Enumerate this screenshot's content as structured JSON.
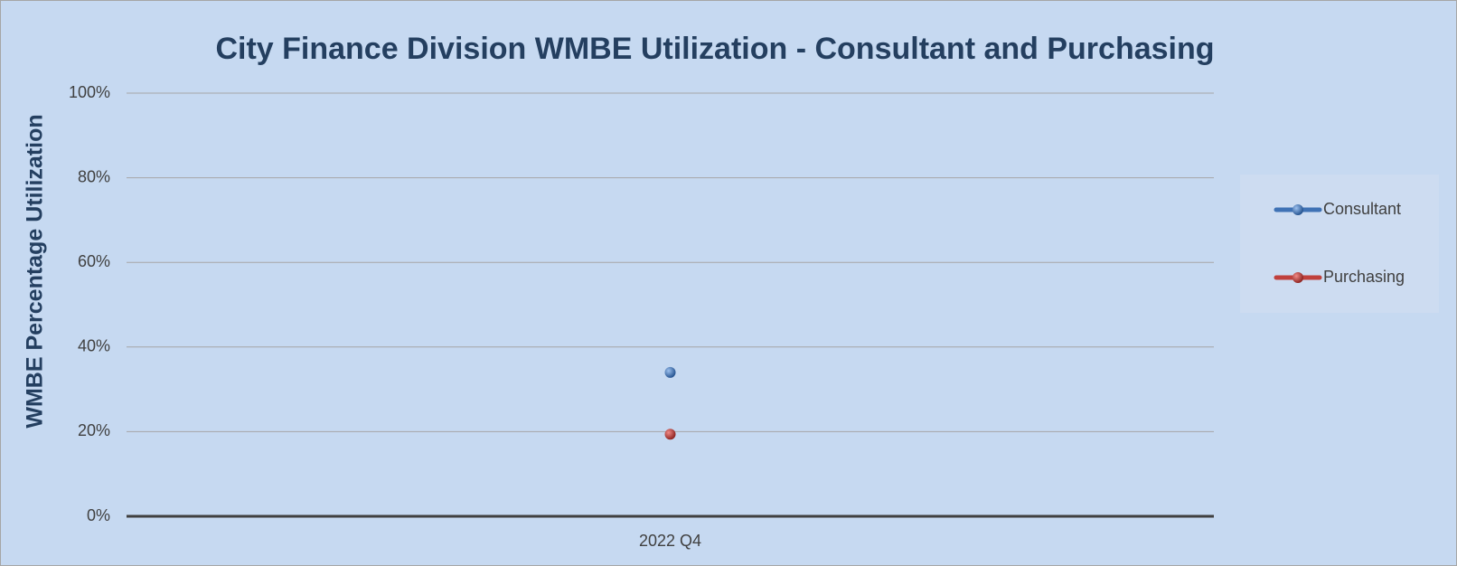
{
  "chart_data": {
    "type": "line",
    "title": "City Finance Division WMBE Utilization - Consultant and Purchasing",
    "y_label": "WMBE Percentage Utilization",
    "categories": [
      "2022 Q4"
    ],
    "series": [
      {
        "name": "Consultant",
        "color": "#3f72b5",
        "values": [
          34
        ]
      },
      {
        "name": "Purchasing",
        "color": "#c0403c",
        "values": [
          19.4
        ]
      }
    ],
    "ylim": [
      0,
      100
    ],
    "yticks": [
      {
        "value": 0,
        "label": "0%"
      },
      {
        "value": 20,
        "label": "20%"
      },
      {
        "value": 40,
        "label": "40%"
      },
      {
        "value": 60,
        "label": "60%"
      },
      {
        "value": 80,
        "label": "80%"
      },
      {
        "value": 100,
        "label": "100%"
      }
    ],
    "grid": true,
    "legend": "right"
  }
}
